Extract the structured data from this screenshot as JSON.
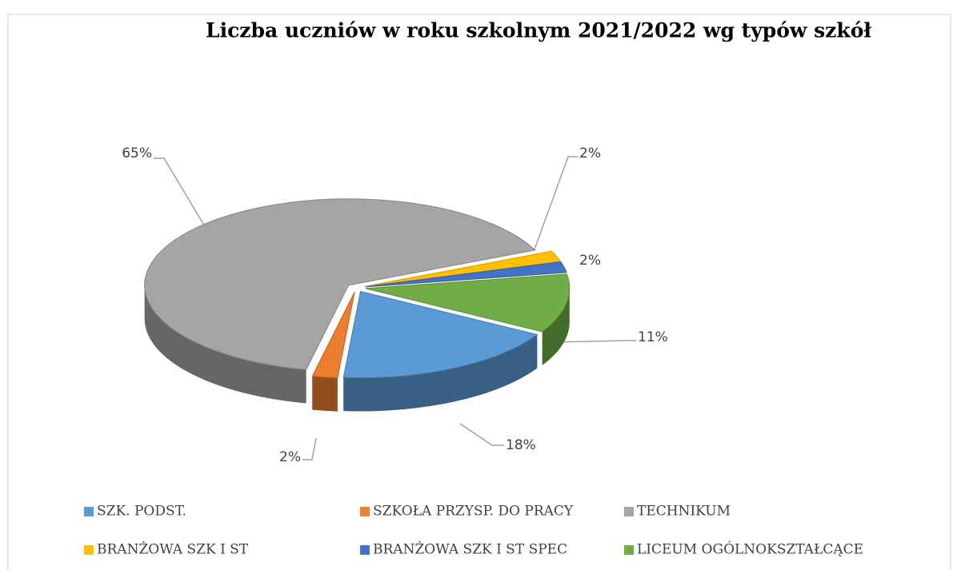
{
  "chart_data": {
    "type": "pie",
    "title": "Liczba uczniów w roku szkolnym 2021/2022 wg typów szkół",
    "categories": [
      "SZK. PODST.",
      "SZKOŁA PRZYSP. DO PRACY",
      "TECHNIKUM",
      "BRANŻOWA SZK I ST",
      "BRANŻOWA SZK I ST SPEC",
      "LICEUM OGÓLNOKSZTAŁCĄCE"
    ],
    "values": [
      18,
      2,
      65,
      2,
      2,
      11
    ],
    "value_labels": [
      "18%",
      "2%",
      "65%",
      "2%",
      "2%",
      "11%"
    ],
    "colors": [
      "#5b9bd5",
      "#ed7d31",
      "#a5a5a5",
      "#ffc000",
      "#4472c4",
      "#70ad47"
    ],
    "legend": "bottom"
  }
}
